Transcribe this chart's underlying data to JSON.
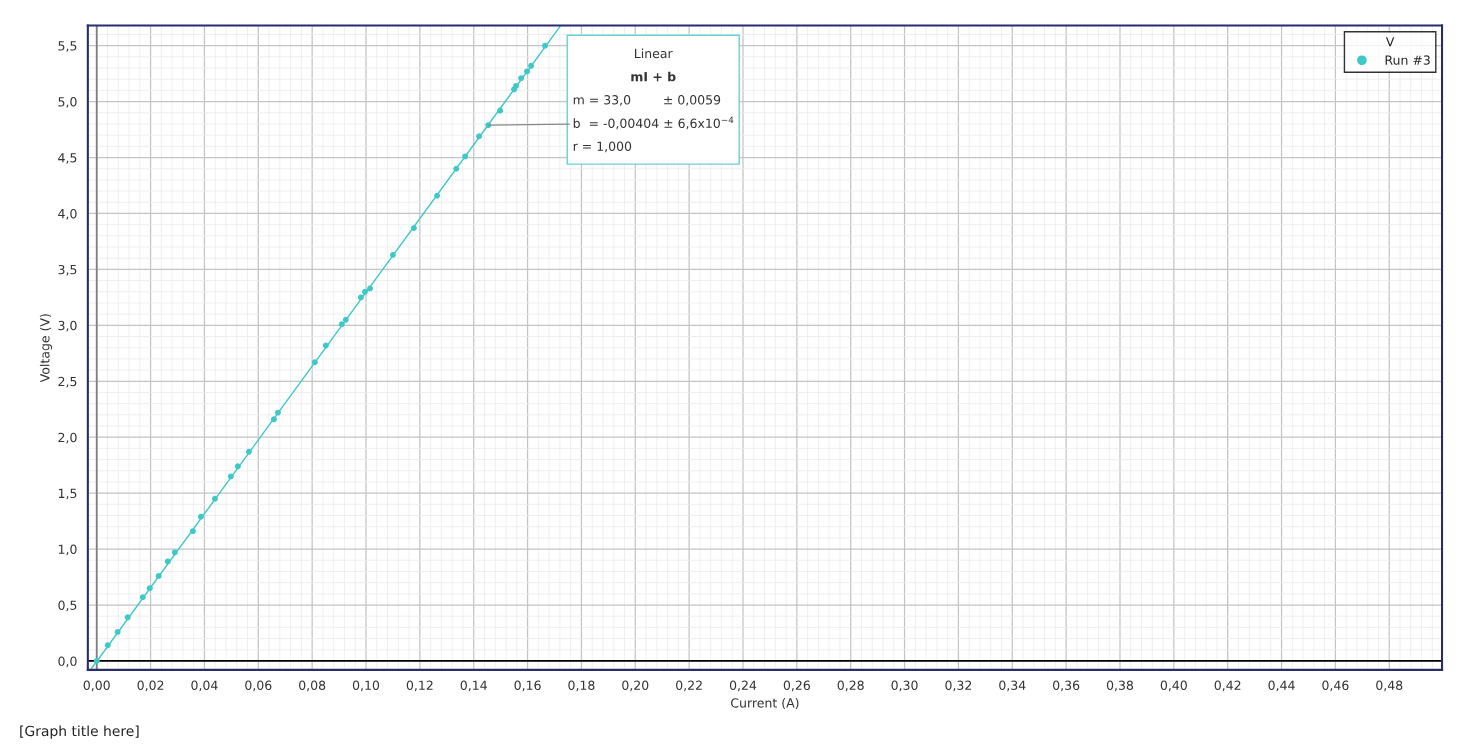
{
  "chart_data": {
    "type": "scatter",
    "title": "[Graph title here]",
    "xlabel": "Current (A)",
    "ylabel": "Voltage (V)",
    "legend_title": "V",
    "series": [
      {
        "name": "Run #3",
        "color": "#3ec8c8",
        "x": [
          0,
          0.0041,
          0.0078,
          0.0115,
          0.0171,
          0.0197,
          0.023,
          0.0264,
          0.029,
          0.0357,
          0.0387,
          0.0439,
          0.0498,
          0.0524,
          0.0565,
          0.0658,
          0.0673,
          0.081,
          0.0851,
          0.091,
          0.0925,
          0.0981,
          0.0996,
          0.1015,
          0.11,
          0.1178,
          0.1264,
          0.1335,
          0.1368,
          0.142,
          0.1454,
          0.1498,
          0.155,
          0.1557,
          0.1576,
          0.1598,
          0.1613,
          0.1665
        ],
        "values": [
          0,
          0.14,
          0.26,
          0.39,
          0.57,
          0.65,
          0.76,
          0.89,
          0.97,
          1.16,
          1.29,
          1.45,
          1.65,
          1.74,
          1.87,
          2.16,
          2.22,
          2.67,
          2.82,
          3.01,
          3.05,
          3.25,
          3.3,
          3.33,
          3.63,
          3.87,
          4.16,
          4.4,
          4.51,
          4.69,
          4.79,
          4.92,
          5.11,
          5.14,
          5.21,
          5.27,
          5.32,
          5.5
        ]
      },
      {
        "color": "#3ec8c8",
        "type": "line",
        "marker": "none",
        "x": [
          -0.002,
          0.172
        ],
        "values": [
          -0.07,
          5.67
        ]
      }
    ],
    "xlim": [
      -0.0033,
      0.4996
    ],
    "ylim": [
      -0.08,
      5.68
    ],
    "xticks": [
      {
        "value": 0,
        "label": "0,00"
      },
      {
        "value": 0.02,
        "label": "0,02"
      },
      {
        "value": 0.04,
        "label": "0,04"
      },
      {
        "value": 0.06,
        "label": "0,06"
      },
      {
        "value": 0.08,
        "label": "0,08"
      },
      {
        "value": 0.1,
        "label": "0,10"
      },
      {
        "value": 0.12,
        "label": "0,12"
      },
      {
        "value": 0.14,
        "label": "0,14"
      },
      {
        "value": 0.16,
        "label": "0,16"
      },
      {
        "value": 0.18,
        "label": "0,18"
      },
      {
        "value": 0.2,
        "label": "0,20"
      },
      {
        "value": 0.22,
        "label": "0,22"
      },
      {
        "value": 0.24,
        "label": "0,24"
      },
      {
        "value": 0.26,
        "label": "0,26"
      },
      {
        "value": 0.28,
        "label": "0,28"
      },
      {
        "value": 0.3,
        "label": "0,30"
      },
      {
        "value": 0.32,
        "label": "0,32"
      },
      {
        "value": 0.34,
        "label": "0,34"
      },
      {
        "value": 0.36,
        "label": "0,36"
      },
      {
        "value": 0.38,
        "label": "0,38"
      },
      {
        "value": 0.4,
        "label": "0,40"
      },
      {
        "value": 0.42,
        "label": "0,42"
      },
      {
        "value": 0.44,
        "label": "0,44"
      },
      {
        "value": 0.46,
        "label": "0,46"
      },
      {
        "value": 0.48,
        "label": "0,48"
      }
    ],
    "yticks": [
      {
        "value": 0,
        "label": "0,0"
      },
      {
        "value": 0.5,
        "label": "0,5"
      },
      {
        "value": 1,
        "label": "1,0"
      },
      {
        "value": 1.5,
        "label": "1,5"
      },
      {
        "value": 2,
        "label": "2,0"
      },
      {
        "value": 2.5,
        "label": "2,5"
      },
      {
        "value": 3,
        "label": "3,0"
      },
      {
        "value": 3.5,
        "label": "3,5"
      },
      {
        "value": 4,
        "label": "4,0"
      },
      {
        "value": 4.5,
        "label": "4,5"
      },
      {
        "value": 5,
        "label": "5,0"
      },
      {
        "value": 5.5,
        "label": "5,5"
      }
    ],
    "ref_lines": [
      {
        "axis": "y",
        "value": 0,
        "color": "#000000"
      },
      {
        "axis": "x",
        "value": 0,
        "color": "#808080"
      }
    ],
    "annotations": [
      "Linear",
      "mI + b",
      "m = 33,0        ± 0,0059",
      {
        "text": "b  = -0,00404 ± 6,6x10$^{−4}$",
        "x": 0.1454,
        "y": 4.79
      },
      "r = 1,000"
    ],
    "grid": true,
    "legend": "top right",
    "marker": "circle"
  }
}
